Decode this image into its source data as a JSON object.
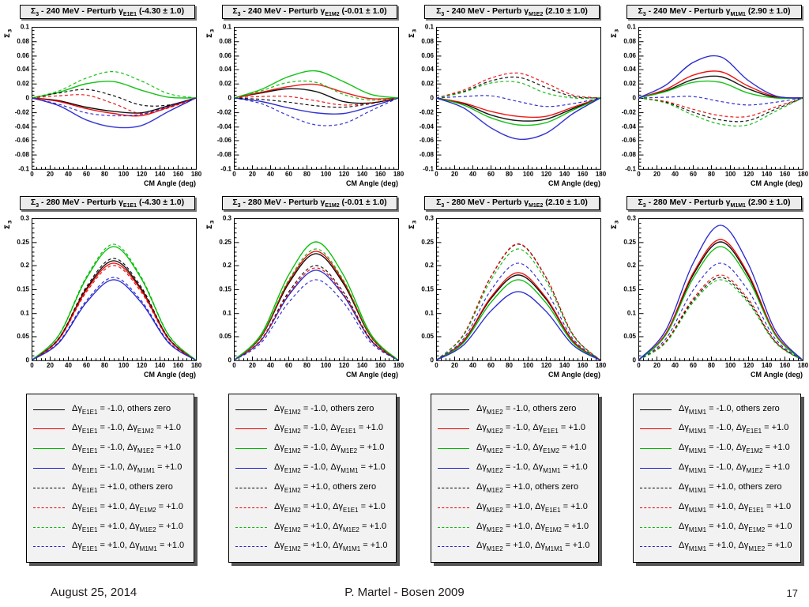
{
  "footer": {
    "date": "August 25, 2014",
    "center": "P. Martel - Bosen 2009",
    "page": "17"
  },
  "colors": {
    "black": "#000000",
    "red": "#ee0000",
    "green": "#00bb00",
    "blue": "#2222cc",
    "title_bg": "#ececec",
    "legend_bg": "#f2f2f2",
    "shadow": "#565656"
  },
  "legends": [
    {
      "entries": [
        {
          "color": "#000000",
          "dash": false,
          "label": "Δγ_{E1E1} = -1.0, others zero"
        },
        {
          "color": "#ee0000",
          "dash": false,
          "label": "Δγ_{E1E1} = -1.0, Δγ_{E1M2} = +1.0"
        },
        {
          "color": "#00bb00",
          "dash": false,
          "label": "Δγ_{E1E1} = -1.0, Δγ_{M1E2} = +1.0"
        },
        {
          "color": "#2222cc",
          "dash": false,
          "label": "Δγ_{E1E1} = -1.0, Δγ_{M1M1} = +1.0"
        },
        {
          "color": "#000000",
          "dash": true,
          "label": "Δγ_{E1E1} = +1.0, others zero"
        },
        {
          "color": "#ee0000",
          "dash": true,
          "label": "Δγ_{E1E1} = +1.0, Δγ_{E1M2} = +1.0"
        },
        {
          "color": "#00bb00",
          "dash": true,
          "label": "Δγ_{E1E1} = +1.0, Δγ_{M1E2} = +1.0"
        },
        {
          "color": "#2222cc",
          "dash": true,
          "label": "Δγ_{E1E1} = +1.0, Δγ_{M1M1} = +1.0"
        }
      ]
    },
    {
      "entries": [
        {
          "color": "#000000",
          "dash": false,
          "label": "Δγ_{E1M2} = -1.0, others zero"
        },
        {
          "color": "#ee0000",
          "dash": false,
          "label": "Δγ_{E1M2} = -1.0, Δγ_{E1E1} = +1.0"
        },
        {
          "color": "#00bb00",
          "dash": false,
          "label": "Δγ_{E1M2} = -1.0, Δγ_{M1E2} = +1.0"
        },
        {
          "color": "#2222cc",
          "dash": false,
          "label": "Δγ_{E1M2} = -1.0, Δγ_{M1M1} = +1.0"
        },
        {
          "color": "#000000",
          "dash": true,
          "label": "Δγ_{E1M2} = +1.0, others zero"
        },
        {
          "color": "#ee0000",
          "dash": true,
          "label": "Δγ_{E1M2} = +1.0, Δγ_{E1E1} = +1.0"
        },
        {
          "color": "#00bb00",
          "dash": true,
          "label": "Δγ_{E1M2} = +1.0, Δγ_{M1E2} = +1.0"
        },
        {
          "color": "#2222cc",
          "dash": true,
          "label": "Δγ_{E1M2} = +1.0, Δγ_{M1M1} = +1.0"
        }
      ]
    },
    {
      "entries": [
        {
          "color": "#000000",
          "dash": false,
          "label": "Δγ_{M1E2} = -1.0, others zero"
        },
        {
          "color": "#ee0000",
          "dash": false,
          "label": "Δγ_{M1E2} = -1.0, Δγ_{E1E1} = +1.0"
        },
        {
          "color": "#00bb00",
          "dash": false,
          "label": "Δγ_{M1E2} = -1.0, Δγ_{E1M2} = +1.0"
        },
        {
          "color": "#2222cc",
          "dash": false,
          "label": "Δγ_{M1E2} = -1.0, Δγ_{M1M1} = +1.0"
        },
        {
          "color": "#000000",
          "dash": true,
          "label": "Δγ_{M1E2} = +1.0, others zero"
        },
        {
          "color": "#ee0000",
          "dash": true,
          "label": "Δγ_{M1E2} = +1.0, Δγ_{E1E1} = +1.0"
        },
        {
          "color": "#00bb00",
          "dash": true,
          "label": "Δγ_{M1E2} = +1.0, Δγ_{E1M2} = +1.0"
        },
        {
          "color": "#2222cc",
          "dash": true,
          "label": "Δγ_{M1E2} = +1.0, Δγ_{M1M1} = +1.0"
        }
      ]
    },
    {
      "entries": [
        {
          "color": "#000000",
          "dash": false,
          "label": "Δγ_{M1M1} = -1.0, others zero"
        },
        {
          "color": "#ee0000",
          "dash": false,
          "label": "Δγ_{M1M1} = -1.0, Δγ_{E1E1} = +1.0"
        },
        {
          "color": "#00bb00",
          "dash": false,
          "label": "Δγ_{M1M1} = -1.0, Δγ_{E1M2} = +1.0"
        },
        {
          "color": "#2222cc",
          "dash": false,
          "label": "Δγ_{M1M1} = -1.0, Δγ_{M1E2} = +1.0"
        },
        {
          "color": "#000000",
          "dash": true,
          "label": "Δγ_{M1M1} = +1.0, others zero"
        },
        {
          "color": "#ee0000",
          "dash": true,
          "label": "Δγ_{M1M1} = +1.0, Δγ_{E1E1} = +1.0"
        },
        {
          "color": "#00bb00",
          "dash": true,
          "label": "Δγ_{M1M1} = +1.0, Δγ_{E1M2} = +1.0"
        },
        {
          "color": "#2222cc",
          "dash": true,
          "label": "Δγ_{M1M1} = +1.0, Δγ_{M1E2} = +1.0"
        }
      ]
    }
  ],
  "chart_data": {
    "type": "line",
    "xlabel": "CM Angle (deg)",
    "ylabel": "Σ_{3}",
    "x": [
      0,
      30,
      60,
      90,
      120,
      150,
      180
    ],
    "xticks": [
      0,
      20,
      40,
      60,
      80,
      100,
      120,
      140,
      160,
      180
    ],
    "xlim": [
      0,
      180
    ],
    "grid": false,
    "rows": [
      {
        "ylim": [
          -0.1,
          0.1
        ],
        "ymajor": 0.02,
        "yminor": 0.005,
        "ytick_labels": [
          "0.1",
          "0.08",
          "0.06",
          "0.04",
          "0.02",
          "0",
          "-0.02",
          "-0.04",
          "-0.06",
          "-0.08",
          "-0.1"
        ]
      },
      {
        "ylim": [
          0,
          0.3
        ],
        "ymajor": 0.05,
        "yminor": 0.01,
        "ytick_labels": [
          "0.3",
          "0.25",
          "0.2",
          "0.15",
          "0.1",
          "0.05",
          "0"
        ]
      }
    ],
    "series_styles": [
      {
        "color": "#000000",
        "dash": false
      },
      {
        "color": "#ee0000",
        "dash": false
      },
      {
        "color": "#00bb00",
        "dash": false
      },
      {
        "color": "#2222cc",
        "dash": false
      },
      {
        "color": "#000000",
        "dash": true
      },
      {
        "color": "#ee0000",
        "dash": true
      },
      {
        "color": "#00bb00",
        "dash": true
      },
      {
        "color": "#2222cc",
        "dash": true
      }
    ],
    "charts": [
      {
        "title": "Σ_{3} - 240 MeV - Perturb γ_{E1E1} (-4.30 ± 1.0)",
        "row": 0,
        "legend_index": 0,
        "series": [
          [
            0,
            -0.004,
            -0.013,
            -0.019,
            -0.021,
            -0.011,
            0
          ],
          [
            0,
            -0.005,
            -0.015,
            -0.022,
            -0.025,
            -0.013,
            0
          ],
          [
            0,
            0.008,
            0.02,
            0.023,
            0.011,
            0.001,
            0
          ],
          [
            0,
            -0.011,
            -0.031,
            -0.041,
            -0.039,
            -0.019,
            0
          ],
          [
            0,
            0.007,
            0.012,
            0.003,
            -0.01,
            -0.01,
            0
          ],
          [
            0,
            0.003,
            0.004,
            -0.008,
            -0.022,
            -0.014,
            0
          ],
          [
            0,
            0.01,
            0.028,
            0.037,
            0.024,
            0.006,
            0
          ],
          [
            0,
            -0.009,
            -0.021,
            -0.025,
            -0.023,
            -0.012,
            0
          ]
        ]
      },
      {
        "title": "Σ_{3} - 240 MeV - Perturb γ_{E1M2} (-0.01 ± 1.0)",
        "row": 0,
        "legend_index": 1,
        "series": [
          [
            0,
            0.007,
            0.013,
            0.009,
            -0.005,
            -0.007,
            0
          ],
          [
            0,
            0.008,
            0.016,
            0.019,
            0.008,
            -0.001,
            0
          ],
          [
            0,
            0.012,
            0.03,
            0.038,
            0.023,
            0.005,
            0
          ],
          [
            0,
            -0.005,
            -0.014,
            -0.021,
            -0.022,
            -0.012,
            0
          ],
          [
            0,
            -0.002,
            -0.006,
            -0.011,
            -0.013,
            -0.008,
            0
          ],
          [
            0,
            0.002,
            0.002,
            -0.004,
            -0.01,
            -0.007,
            0
          ],
          [
            0,
            0.01,
            0.022,
            0.022,
            0.005,
            -0.003,
            0
          ],
          [
            0,
            -0.008,
            -0.025,
            -0.038,
            -0.036,
            -0.018,
            0
          ]
        ]
      },
      {
        "title": "Σ_{3} - 240 MeV - Perturb γ_{M1E2} (2.10 ± 1.0)",
        "row": 0,
        "legend_index": 2,
        "series": [
          [
            0,
            -0.008,
            -0.024,
            -0.032,
            -0.03,
            -0.015,
            0
          ],
          [
            0,
            -0.007,
            -0.019,
            -0.026,
            -0.026,
            -0.013,
            0
          ],
          [
            0,
            -0.01,
            -0.028,
            -0.038,
            -0.035,
            -0.017,
            0
          ],
          [
            0,
            -0.014,
            -0.042,
            -0.058,
            -0.05,
            -0.022,
            0
          ],
          [
            0,
            0.009,
            0.024,
            0.029,
            0.015,
            0.002,
            0
          ],
          [
            0,
            0.011,
            0.028,
            0.035,
            0.021,
            0.004,
            0
          ],
          [
            0,
            0.008,
            0.021,
            0.022,
            0.007,
            0.0,
            0
          ],
          [
            0,
            0.002,
            0.003,
            -0.005,
            -0.012,
            -0.008,
            0
          ]
        ]
      },
      {
        "title": "Σ_{3} - 240 MeV - Perturb γ_{M1M1} (2.90 ± 1.0)",
        "row": 0,
        "legend_index": 3,
        "series": [
          [
            0,
            0.01,
            0.026,
            0.03,
            0.013,
            0.001,
            0
          ],
          [
            0,
            0.012,
            0.032,
            0.037,
            0.017,
            0.002,
            0
          ],
          [
            0,
            0.009,
            0.022,
            0.022,
            0.007,
            0.0,
            0
          ],
          [
            0,
            0.018,
            0.05,
            0.058,
            0.025,
            0.003,
            0
          ],
          [
            0,
            -0.006,
            -0.02,
            -0.031,
            -0.032,
            -0.016,
            0
          ],
          [
            0,
            -0.005,
            -0.016,
            -0.025,
            -0.026,
            -0.013,
            0
          ],
          [
            0,
            -0.007,
            -0.024,
            -0.037,
            -0.038,
            -0.019,
            0
          ],
          [
            0,
            0.001,
            0.002,
            -0.005,
            -0.01,
            -0.006,
            0
          ]
        ]
      },
      {
        "title": "Σ_{3} - 280 MeV - Perturb γ_{E1E1} (-4.30 ± 1.0)",
        "row": 1,
        "legend_index": 0,
        "series": [
          [
            0,
            0.046,
            0.151,
            0.21,
            0.151,
            0.046,
            0
          ],
          [
            0,
            0.045,
            0.148,
            0.205,
            0.148,
            0.045,
            0
          ],
          [
            0,
            0.053,
            0.173,
            0.24,
            0.173,
            0.053,
            0
          ],
          [
            0,
            0.037,
            0.122,
            0.17,
            0.122,
            0.037,
            0
          ],
          [
            0,
            0.047,
            0.155,
            0.215,
            0.155,
            0.047,
            0
          ],
          [
            0,
            0.044,
            0.144,
            0.2,
            0.144,
            0.044,
            0
          ],
          [
            0,
            0.054,
            0.176,
            0.245,
            0.176,
            0.054,
            0
          ],
          [
            0,
            0.039,
            0.126,
            0.175,
            0.126,
            0.039,
            0
          ]
        ]
      },
      {
        "title": "Σ_{3} - 280 MeV - Perturb γ_{E1M2} (-0.01 ± 1.0)",
        "row": 1,
        "legend_index": 1,
        "series": [
          [
            0,
            0.05,
            0.162,
            0.225,
            0.162,
            0.05,
            0
          ],
          [
            0,
            0.051,
            0.166,
            0.23,
            0.166,
            0.051,
            0
          ],
          [
            0,
            0.055,
            0.18,
            0.25,
            0.18,
            0.055,
            0
          ],
          [
            0,
            0.042,
            0.137,
            0.19,
            0.137,
            0.042,
            0
          ],
          [
            0,
            0.044,
            0.144,
            0.2,
            0.144,
            0.044,
            0
          ],
          [
            0,
            0.043,
            0.14,
            0.195,
            0.14,
            0.043,
            0
          ],
          [
            0,
            0.052,
            0.169,
            0.235,
            0.169,
            0.052,
            0
          ],
          [
            0,
            0.037,
            0.122,
            0.17,
            0.122,
            0.037,
            0
          ]
        ]
      },
      {
        "title": "Σ_{3} - 280 MeV - Perturb γ_{M1E2} (2.10 ± 1.0)",
        "row": 1,
        "legend_index": 2,
        "series": [
          [
            0,
            0.04,
            0.13,
            0.18,
            0.13,
            0.04,
            0
          ],
          [
            0,
            0.041,
            0.133,
            0.185,
            0.133,
            0.041,
            0
          ],
          [
            0,
            0.037,
            0.122,
            0.17,
            0.122,
            0.037,
            0
          ],
          [
            0,
            0.032,
            0.104,
            0.145,
            0.104,
            0.032,
            0
          ],
          [
            0,
            0.054,
            0.176,
            0.245,
            0.176,
            0.054,
            0
          ],
          [
            0,
            0.054,
            0.177,
            0.246,
            0.177,
            0.054,
            0
          ],
          [
            0,
            0.052,
            0.169,
            0.235,
            0.169,
            0.052,
            0
          ],
          [
            0,
            0.045,
            0.148,
            0.205,
            0.148,
            0.045,
            0
          ]
        ]
      },
      {
        "title": "Σ_{3} - 280 MeV - Perturb γ_{M1M1} (2.90 ± 1.0)",
        "row": 1,
        "legend_index": 3,
        "series": [
          [
            0,
            0.055,
            0.18,
            0.25,
            0.18,
            0.055,
            0
          ],
          [
            0,
            0.056,
            0.184,
            0.255,
            0.184,
            0.056,
            0
          ],
          [
            0,
            0.053,
            0.173,
            0.24,
            0.173,
            0.053,
            0
          ],
          [
            0,
            0.063,
            0.205,
            0.285,
            0.205,
            0.063,
            0
          ],
          [
            0,
            0.039,
            0.126,
            0.175,
            0.126,
            0.039,
            0
          ],
          [
            0,
            0.04,
            0.13,
            0.18,
            0.13,
            0.04,
            0
          ],
          [
            0,
            0.037,
            0.122,
            0.17,
            0.122,
            0.037,
            0
          ],
          [
            0,
            0.045,
            0.148,
            0.205,
            0.148,
            0.045,
            0
          ]
        ]
      }
    ]
  }
}
